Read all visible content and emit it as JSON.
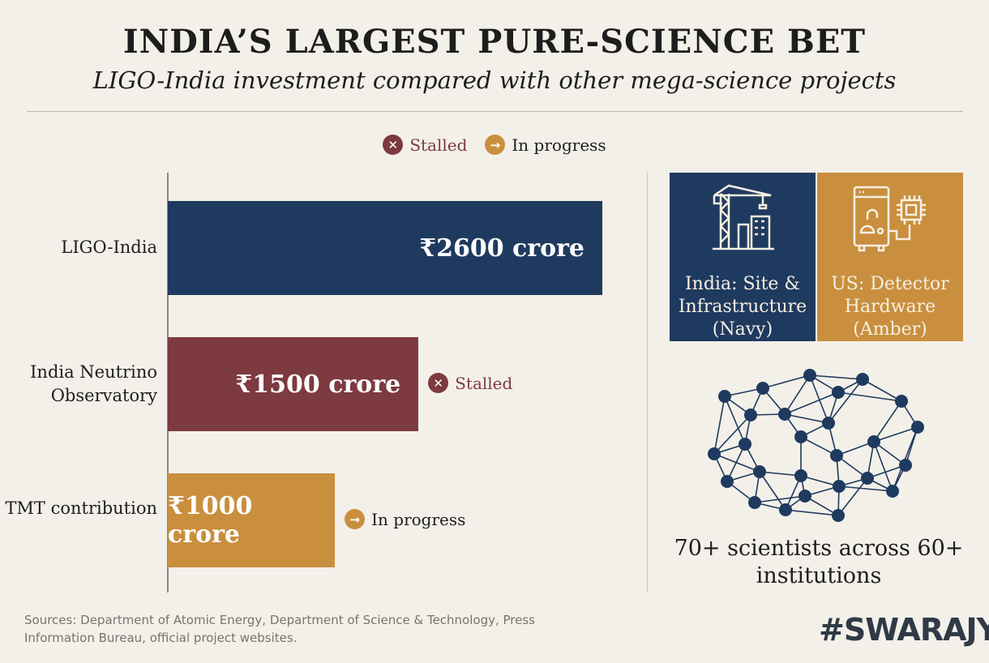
{
  "title": "INDIA’S LARGEST PURE-SCIENCE BET",
  "subtitle": "LIGO-India investment compared with other mega-science projects",
  "legend": [
    {
      "label": "Stalled",
      "icon": "x-circle-icon",
      "color": "#7d3a3f"
    },
    {
      "label": "In progress",
      "icon": "arrow-circle-icon",
      "color": "#c98f3e"
    }
  ],
  "chart_data": {
    "type": "bar",
    "orientation": "horizontal",
    "unit": "₹ crore",
    "categories": [
      "LIGO-India",
      "India Neutrino Observatory",
      "TMT contribution"
    ],
    "values": [
      2600,
      1500,
      1000
    ],
    "data_labels": [
      "₹2600 crore",
      "₹1500 crore",
      "₹1000 crore"
    ],
    "colors": [
      "#1f3a5f",
      "#7d3a3f",
      "#c98f3e"
    ],
    "status": [
      "",
      "Stalled",
      "In progress"
    ],
    "xlim": [
      0,
      2600
    ],
    "grid": false
  },
  "panels": [
    {
      "text": "India: Site & Infrastructure (Navy)",
      "icon": "crane-building-icon",
      "color": "#1f3a5f"
    },
    {
      "text": "US: Detector Hardware (Amber)",
      "icon": "detector-chip-icon",
      "color": "#c98f3e"
    }
  ],
  "network_icon": "network-icon",
  "scientists": "70+ scientists across 60+ institutions",
  "sources": "Sources: Department of Atomic Energy, Department of Science & Technology, Press Information Bureau, official project websites.",
  "brand": "#SWARAJYA"
}
